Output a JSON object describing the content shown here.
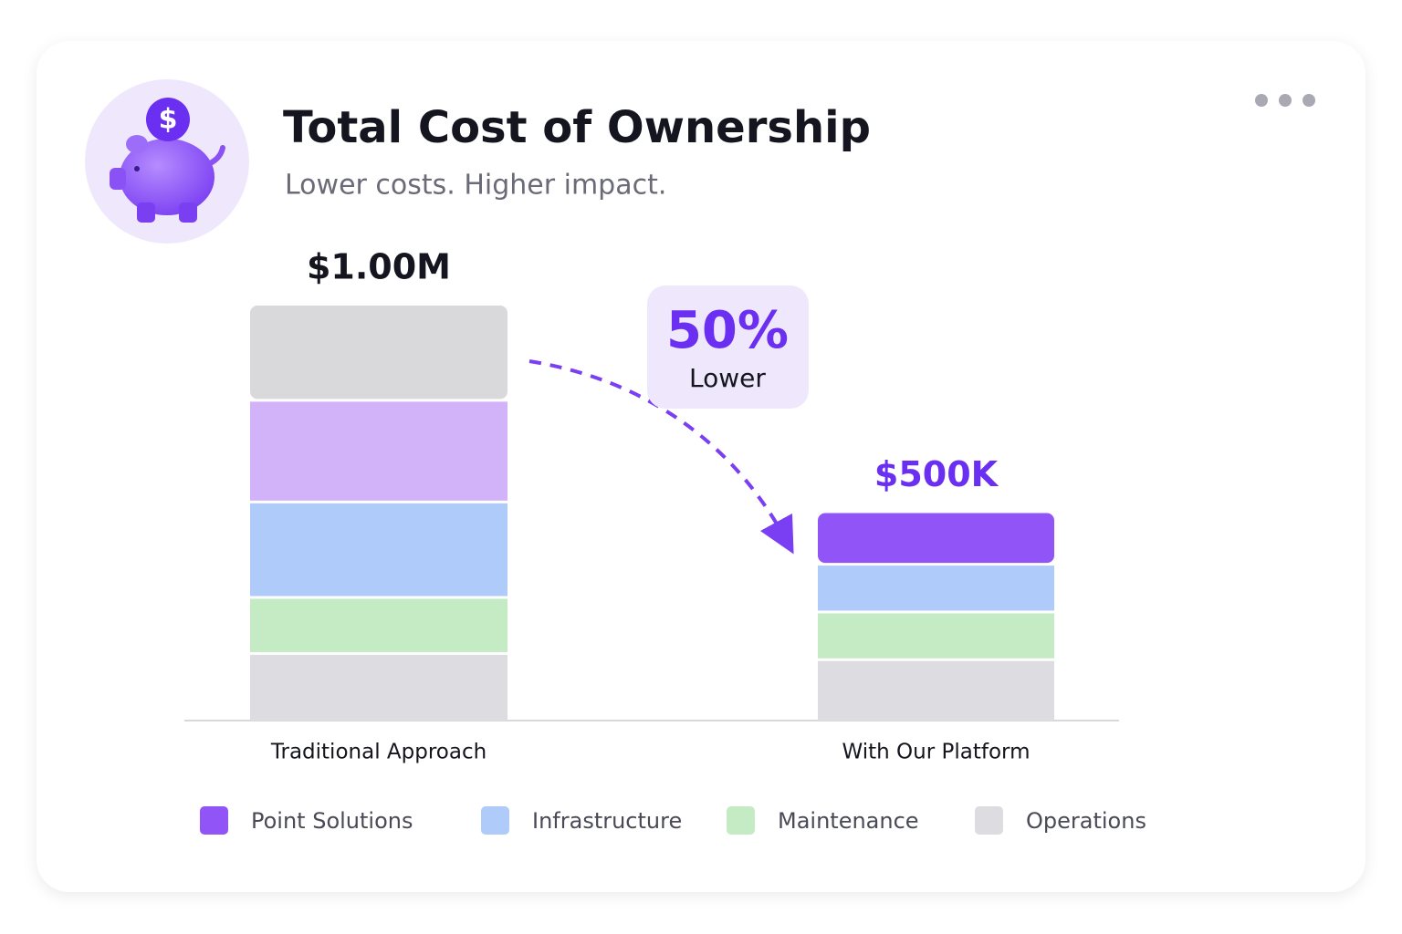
{
  "chart_data": {
    "type": "stacked_bar",
    "title": "Total Cost of Ownership",
    "subtitle": "Lower costs. Higher impact.",
    "categories": [
      "Traditional Approach",
      "With Our Platform"
    ],
    "series": [
      {
        "name": "Operations",
        "color": "#dcdce1",
        "values": [
          165000,
          150000
        ]
      },
      {
        "name": "Maintenance",
        "color": "#c5ebc4",
        "values": [
          135000,
          115000
        ]
      },
      {
        "name": "Infrastructure",
        "color": "#aecbfa",
        "values": [
          230000,
          115000
        ]
      },
      {
        "name": "Point Solutions",
        "color": "#9155f7",
        "colors": [
          "#d2b3fa",
          "#9155f7"
        ],
        "values": [
          245000,
          120000
        ]
      },
      {
        "color": "#d9d9dc",
        "values": [
          225000,
          null
        ]
      }
    ],
    "totals": [
      1000000,
      500000
    ],
    "total_labels": [
      "$1.00M",
      "$500K"
    ],
    "total_label_colors": [
      "#15151f",
      "#6a2ff0"
    ],
    "annotation": {
      "title": "50%",
      "text": "Lower"
    }
  }
}
